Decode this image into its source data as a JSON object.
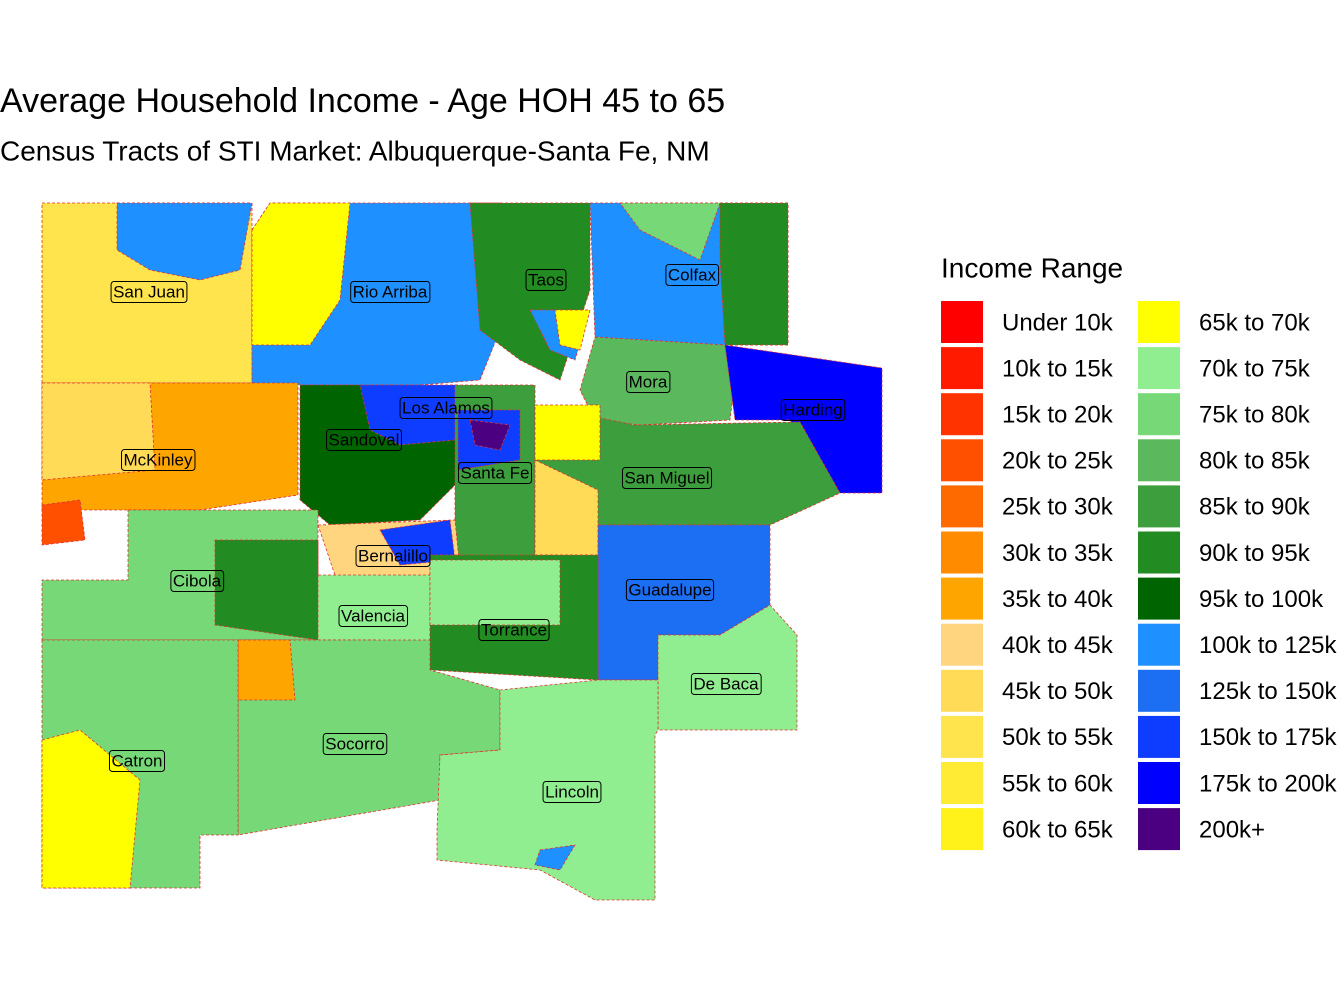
{
  "title": "Average Household Income - Age HOH 45 to 65",
  "subtitle": "Census Tracts of STI Market: Albuquerque-Santa Fe, NM",
  "legend": {
    "title": "Income Range",
    "items": [
      {
        "label": "Under 10k",
        "color": "#FF0000"
      },
      {
        "label": "10k to 15k",
        "color": "#FF1A00"
      },
      {
        "label": "15k to 20k",
        "color": "#FF3300"
      },
      {
        "label": "20k to 25k",
        "color": "#FF5000"
      },
      {
        "label": "25k to 30k",
        "color": "#FF6A00"
      },
      {
        "label": "30k to 35k",
        "color": "#FF8C00"
      },
      {
        "label": "35k to 40k",
        "color": "#FFA500"
      },
      {
        "label": "40k to 45k",
        "color": "#FFD580"
      },
      {
        "label": "45k to 50k",
        "color": "#FFDB58"
      },
      {
        "label": "50k to 55k",
        "color": "#FFE44D"
      },
      {
        "label": "55k to 60k",
        "color": "#FFEB33"
      },
      {
        "label": "60k to 65k",
        "color": "#FFF21A"
      },
      {
        "label": "65k to 70k",
        "color": "#FFFF00"
      },
      {
        "label": "70k to 75k",
        "color": "#90EE90"
      },
      {
        "label": "75k to 80k",
        "color": "#77D877"
      },
      {
        "label": "80k to 85k",
        "color": "#5CB85C"
      },
      {
        "label": "85k to 90k",
        "color": "#3D9E3D"
      },
      {
        "label": "90k to 95k",
        "color": "#228B22"
      },
      {
        "label": "95k to 100k",
        "color": "#006400"
      },
      {
        "label": "100k to 125k",
        "color": "#1E90FF"
      },
      {
        "label": "125k to 150k",
        "color": "#1C6EF2"
      },
      {
        "label": "150k to 175k",
        "color": "#0F3DFF"
      },
      {
        "label": "175k to 200k",
        "color": "#0000FF"
      },
      {
        "label": "200k+",
        "color": "#4B0082"
      }
    ]
  },
  "counties": [
    "San Juan",
    "Rio Arriba",
    "Taos",
    "Colfax",
    "Mora",
    "Harding",
    "Los Alamos",
    "Sandoval",
    "McKinley",
    "Santa Fe",
    "San Miguel",
    "Bernalillo",
    "Cibola",
    "Guadalupe",
    "Valencia",
    "Torrance",
    "De Baca",
    "Socorro",
    "Catron",
    "Lincoln"
  ]
}
